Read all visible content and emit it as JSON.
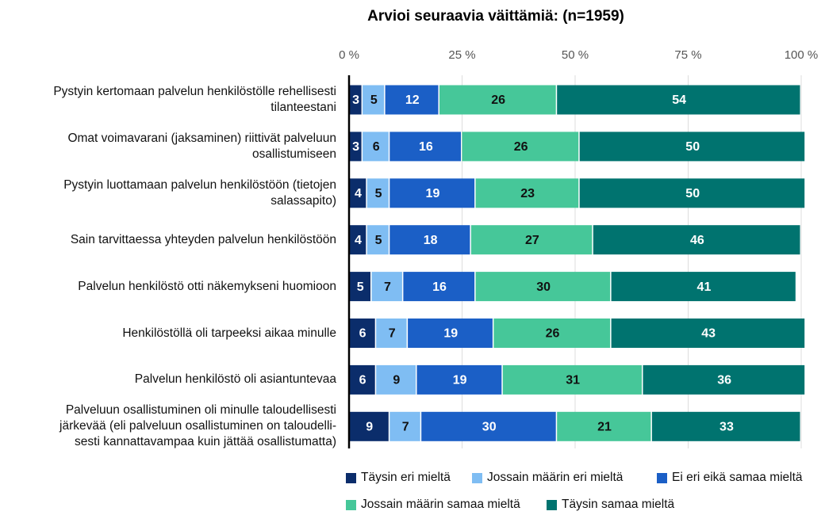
{
  "chart_data": {
    "type": "stacked_barh",
    "title": "Arvioi seuraavia väittämiä: (n=1959)",
    "categories": [
      "Pystyin kertomaan palvelun henkilöstölle rehellisesti\ntilanteestani",
      "Omat voimavarani (jaksaminen) riittivät palveluun\nosallistumiseen",
      "Pystyin luottamaan palvelun henkilöstöön (tietojen\nsalassapito)",
      "Sain tarvittaessa yhteyden palvelun henkilöstöön",
      "Palvelun henkilöstö otti näkemykseni huomioon",
      "Henkilöstöllä oli tarpeeksi aikaa minulle",
      "Palvelun henkilöstö oli asiantuntevaa",
      "Palveluun osallistuminen oli minulle taloudellisesti\njärkevää (eli palveluun osallistuminen on taloudelli-\nsesti kannattavampaa kuin jättää osallistumatta)"
    ],
    "series": [
      {
        "name": "Täysin eri mieltä",
        "color": "#0b2d6b",
        "values": [
          3,
          3,
          4,
          4,
          5,
          6,
          6,
          9
        ]
      },
      {
        "name": "Jossain määrin eri mieltä",
        "color": "#7fbdf3",
        "values": [
          5,
          6,
          5,
          5,
          7,
          7,
          9,
          7
        ]
      },
      {
        "name": "Ei eri eikä samaa mieltä",
        "color": "#1b5fc6",
        "values": [
          12,
          16,
          19,
          18,
          16,
          19,
          19,
          30
        ]
      },
      {
        "name": "Jossain määrin samaa mieltä",
        "color": "#46c799",
        "values": [
          26,
          26,
          23,
          27,
          30,
          26,
          31,
          21
        ]
      },
      {
        "name": "Täysin samaa mieltä",
        "color": "#00736f",
        "values": [
          54,
          50,
          50,
          46,
          41,
          43,
          36,
          33
        ]
      }
    ],
    "xlim": [
      0,
      100
    ],
    "xticks": [
      {
        "value": 0,
        "label": "0 %"
      },
      {
        "value": 25,
        "label": "25 %"
      },
      {
        "value": 50,
        "label": "50 %"
      },
      {
        "value": 75,
        "label": "75 %"
      },
      {
        "value": 100,
        "label": "100 %"
      }
    ],
    "grid": true
  }
}
